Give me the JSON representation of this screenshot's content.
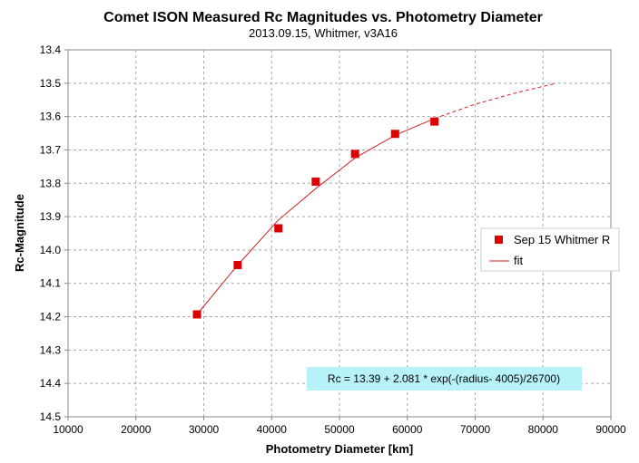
{
  "chart_data": {
    "type": "scatter",
    "title": "Comet ISON Measured Rc Magnitudes vs. Photometry Diameter",
    "subtitle": "2013.09.15,  Whitmer, v3A16",
    "xlabel": "Photometry Diameter  [km]",
    "ylabel": "Rc-Magnitude",
    "xlim": [
      10000,
      90000
    ],
    "ylim": [
      13.4,
      14.5
    ],
    "y_inverted": true,
    "grid": true,
    "x_ticks": [
      "10000",
      "20000",
      "30000",
      "40000",
      "50000",
      "60000",
      "70000",
      "80000",
      "90000"
    ],
    "y_ticks": [
      "13.4",
      "13.5",
      "13.6",
      "13.7",
      "13.8",
      "13.9",
      "14.0",
      "14.1",
      "14.2",
      "14.3",
      "14.4",
      "14.5"
    ],
    "series": [
      {
        "name": "Sep 15 Whitmer R",
        "kind": "scatter",
        "color": "#dd0000",
        "marker": "square",
        "x": [
          29000,
          35000,
          41000,
          46500,
          52300,
          58200,
          64000
        ],
        "y": [
          14.193,
          14.045,
          13.935,
          13.795,
          13.712,
          13.652,
          13.615
        ]
      },
      {
        "name": "fit",
        "kind": "line",
        "color": "#cc2222",
        "x": [
          29000,
          35000,
          41000,
          46500,
          52300,
          58200,
          64000
        ],
        "y": [
          14.193,
          14.045,
          13.91,
          13.816,
          13.724,
          13.656,
          13.606
        ]
      },
      {
        "kind": "line-dashed",
        "color": "#cc2222",
        "x": [
          64000,
          70000,
          76000,
          82000
        ],
        "y": [
          13.606,
          13.563,
          13.529,
          13.5
        ]
      }
    ],
    "legend_position": "right",
    "annotation": "Rc = 13.39  + 2.081  * exp(-(radius- 4005)/26700)"
  }
}
